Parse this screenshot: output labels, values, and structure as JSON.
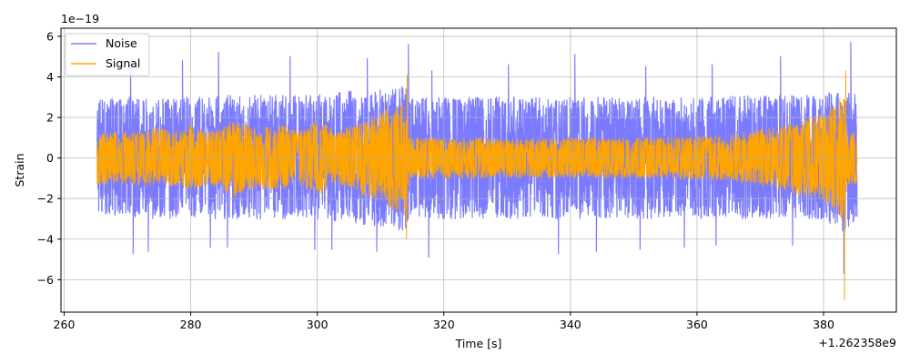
{
  "chart_data": {
    "type": "line",
    "title": "",
    "xlabel": "Time [s]",
    "ylabel": "Strain",
    "x_offset_label": "+1.262358e9",
    "y_scale_label": "1e−19",
    "xlim": [
      259.5,
      391.5
    ],
    "ylim": [
      -7.6,
      6.4
    ],
    "x_ticks": [
      260,
      280,
      300,
      320,
      340,
      360,
      380
    ],
    "x_tick_labels": [
      "260",
      "280",
      "300",
      "320",
      "340",
      "360",
      "380"
    ],
    "y_ticks": [
      -6,
      -4,
      -2,
      0,
      2,
      4,
      6
    ],
    "y_tick_labels": [
      "−6",
      "−4",
      "−2",
      "0",
      "2",
      "4",
      "6"
    ],
    "grid": true,
    "legend": "top-left",
    "x_range_of_data": [
      265.2,
      385.3
    ],
    "series": [
      {
        "name": "Noise",
        "color": "#7b7bff",
        "envelope": {
          "x": [
            265.2,
            270,
            275,
            280,
            285,
            290,
            295,
            300,
            305,
            310,
            314,
            314.5,
            320,
            330,
            340,
            350,
            360,
            370,
            375,
            380,
            383,
            385.3
          ],
          "upper": [
            2.9,
            3.0,
            3.1,
            3.0,
            3.1,
            3.1,
            3.1,
            3.1,
            3.3,
            3.4,
            3.6,
            3.0,
            3.0,
            3.0,
            3.0,
            3.0,
            3.0,
            3.1,
            3.1,
            3.2,
            3.6,
            3.2
          ],
          "lower": [
            -2.8,
            -2.9,
            -3.0,
            -3.0,
            -3.0,
            -3.0,
            -3.0,
            -3.0,
            -3.2,
            -3.4,
            -3.6,
            -3.0,
            -3.0,
            -3.0,
            -3.0,
            -3.0,
            -3.0,
            -3.0,
            -3.0,
            -3.1,
            -3.6,
            -3.1
          ]
        },
        "peaks": [
          {
            "x": 270.5,
            "y": 4.7
          },
          {
            "x": 278.7,
            "y": 4.8
          },
          {
            "x": 284.4,
            "y": 5.2
          },
          {
            "x": 295.7,
            "y": 5.0
          },
          {
            "x": 307.9,
            "y": 4.9
          },
          {
            "x": 314.4,
            "y": 5.6
          },
          {
            "x": 318.1,
            "y": 4.3
          },
          {
            "x": 330.2,
            "y": 4.6
          },
          {
            "x": 340.7,
            "y": 5.1
          },
          {
            "x": 351.9,
            "y": 4.5
          },
          {
            "x": 362.4,
            "y": 4.6
          },
          {
            "x": 373.2,
            "y": 5.0
          },
          {
            "x": 384.3,
            "y": 5.7
          }
        ],
        "troughs": [
          {
            "x": 270.9,
            "y": -4.7
          },
          {
            "x": 273.3,
            "y": -4.6
          },
          {
            "x": 283.1,
            "y": -4.4
          },
          {
            "x": 285.8,
            "y": -4.4
          },
          {
            "x": 299.6,
            "y": -4.5
          },
          {
            "x": 302.3,
            "y": -4.5
          },
          {
            "x": 309.4,
            "y": -4.6
          },
          {
            "x": 317.6,
            "y": -4.9
          },
          {
            "x": 338.1,
            "y": -4.7
          },
          {
            "x": 344.1,
            "y": -4.6
          },
          {
            "x": 351.0,
            "y": -4.5
          },
          {
            "x": 358.0,
            "y": -4.4
          },
          {
            "x": 363.0,
            "y": -4.3
          },
          {
            "x": 375.1,
            "y": -4.3
          },
          {
            "x": 383.2,
            "y": -5.7
          }
        ]
      },
      {
        "name": "Signal",
        "color": "#ffa500",
        "envelope": {
          "x": [
            265.2,
            270,
            275,
            278,
            280,
            283,
            287,
            290,
            295,
            297,
            300,
            303,
            307,
            310,
            312,
            314,
            314.5,
            320,
            330,
            340,
            350,
            360,
            365,
            370,
            375,
            380,
            382,
            383.2,
            383.6,
            385.3
          ],
          "upper": [
            1.3,
            1.3,
            1.5,
            1.3,
            1.6,
            1.3,
            1.9,
            1.5,
            1.6,
            1.3,
            1.9,
            1.3,
            1.8,
            2.3,
            2.6,
            2.9,
            1.0,
            1.0,
            1.0,
            1.0,
            1.0,
            1.05,
            1.15,
            1.4,
            1.7,
            2.2,
            2.6,
            3.3,
            1.3,
            1.3
          ],
          "lower": [
            -1.3,
            -1.3,
            -1.5,
            -1.3,
            -1.6,
            -1.3,
            -1.9,
            -1.5,
            -1.6,
            -1.3,
            -1.9,
            -1.3,
            -1.8,
            -2.3,
            -2.6,
            -2.9,
            -1.0,
            -1.0,
            -1.0,
            -1.0,
            -1.0,
            -1.05,
            -1.15,
            -1.4,
            -1.7,
            -2.2,
            -2.6,
            -3.3,
            -1.3,
            -1.3
          ]
        },
        "peaks": [
          {
            "x": 314.2,
            "y": 4.1
          },
          {
            "x": 383.5,
            "y": 4.3
          }
        ],
        "troughs": [
          {
            "x": 314.1,
            "y": -4.0
          },
          {
            "x": 383.3,
            "y": -7.0
          }
        ]
      }
    ]
  }
}
